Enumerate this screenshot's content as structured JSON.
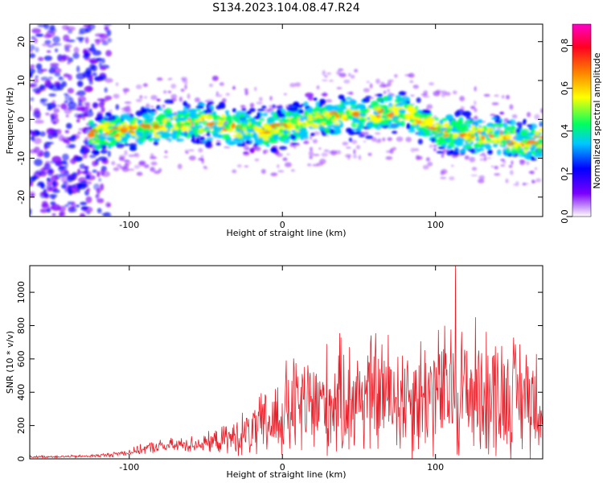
{
  "title": "S134.2023.104.08.47.R24",
  "chart_data": [
    {
      "type": "heatmap",
      "xlabel": "Height of straight line (km)",
      "ylabel": "Frequency (Hz)",
      "xlim": [
        -165,
        170
      ],
      "ylim": [
        -25,
        24.5
      ],
      "xticks": [
        -100,
        0,
        100
      ],
      "yticks": [
        -20,
        -10,
        0,
        10,
        20
      ],
      "colorbar": {
        "label": "Normalized spectral amplitude",
        "range": [
          0.0,
          0.9
        ],
        "ticks": [
          0.0,
          0.2,
          0.4,
          0.6,
          0.8
        ],
        "tick_labels": [
          "0.0",
          "0.2",
          "0.4",
          "0.6",
          "0.8"
        ],
        "colors": [
          "#ffffff",
          "#7a00ff",
          "#0000ff",
          "#00c8ff",
          "#00ff60",
          "#ffff00",
          "#ff8000",
          "#ff0020",
          "#ff00c8"
        ]
      },
      "ridge": {
        "x": [
          -125,
          -110,
          -90,
          -70,
          -50,
          -30,
          -10,
          0,
          20,
          40,
          60,
          70,
          80,
          100,
          120,
          140,
          160,
          170
        ],
        "y": [
          -4,
          -3,
          -2,
          -1,
          -1,
          -2,
          -3,
          -2,
          0,
          1,
          1,
          2,
          2,
          -3,
          -4,
          -4,
          -6,
          -5
        ]
      }
    },
    {
      "type": "line",
      "xlabel": "Height of straight line (km)",
      "ylabel": "SNR (10 * v/v)",
      "xlim": [
        -165,
        170
      ],
      "ylim": [
        0,
        1160
      ],
      "xticks": [
        -100,
        0,
        100
      ],
      "yticks": [
        0,
        200,
        400,
        600,
        800,
        1000
      ],
      "series": [
        {
          "color": "#e8202a",
          "envelope": {
            "x": [
              -165,
              -130,
              -115,
              -100,
              -85,
              -70,
              -50,
              -35,
              -20,
              -5,
              5,
              20,
              40,
              60,
              80,
              100,
              120,
              140,
              160,
              170
            ],
            "mean": [
              12,
              15,
              22,
              40,
              70,
              80,
              95,
              120,
              160,
              230,
              300,
              320,
              360,
              390,
              380,
              400,
              410,
              390,
              380,
              380
            ],
            "amp": [
              8,
              10,
              15,
              25,
              45,
              55,
              65,
              110,
              190,
              300,
              380,
              400,
              420,
              450,
              440,
              470,
              520,
              460,
              420,
              420
            ]
          },
          "peak": {
            "x": 113,
            "y": 1160
          }
        }
      ]
    }
  ]
}
